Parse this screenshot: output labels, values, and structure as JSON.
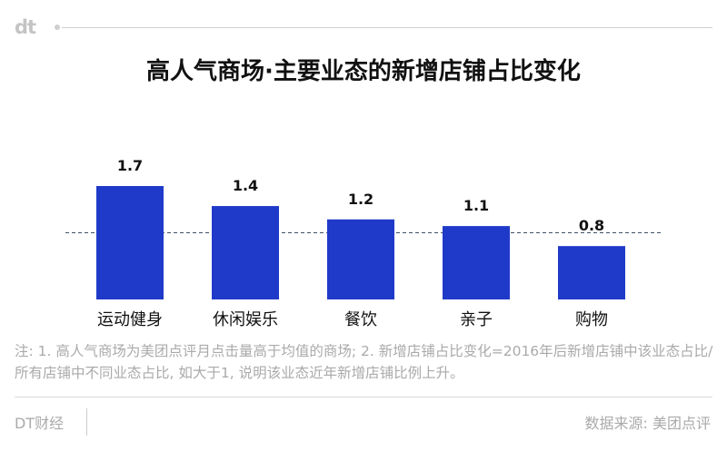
{
  "brand": {
    "logo": "dt",
    "footer_name": "DT财经"
  },
  "title": "高人气商场·主要业态的新增店铺占比变化",
  "note": "注: 1. 高人气商场为美团点评月点击量高于均值的商场; 2. 新增店铺占比变化=2016年后新增店铺中该业态占比/所有店铺中不同业态占比, 如大于1, 说明该业态近年新增店铺比例上升。",
  "source": "数据来源: 美团点评",
  "colors": {
    "bar": "#1f3ac9",
    "reference": "#3d5066",
    "text": "#111111",
    "muted": "#aaaaaa"
  },
  "chart_data": {
    "type": "bar",
    "title": "高人气商场·主要业态的新增店铺占比变化",
    "categories": [
      "运动健身",
      "休闲娱乐",
      "餐饮",
      "亲子",
      "购物"
    ],
    "values": [
      1.7,
      1.4,
      1.2,
      1.1,
      0.8
    ],
    "value_labels": [
      "1.7",
      "1.4",
      "1.2",
      "1.1",
      "0.8"
    ],
    "reference_line": 1.0,
    "ylim": [
      0,
      1.7
    ],
    "xlabel": "",
    "ylabel": "",
    "grid": false,
    "legend": "none"
  }
}
